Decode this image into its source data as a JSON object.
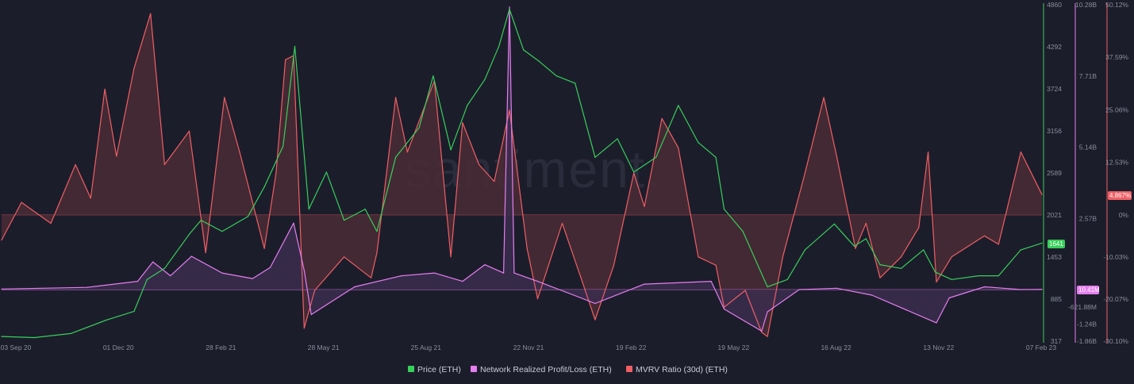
{
  "chart_data": {
    "type": "line",
    "title": "",
    "watermark": "santiment.",
    "colors": {
      "background": "#1c1d2b",
      "price": "#37d05a",
      "nrpl": "#e57ff0",
      "mvrv": "#ef5f64",
      "mvrv_fill": "#4a2b35",
      "nrpl_fill": "#3b2d4f"
    },
    "x_ticks": [
      "03 Sep 20",
      "01 Dec 20",
      "28 Feb 21",
      "28 May 21",
      "25 Aug 21",
      "22 Nov 21",
      "19 Feb 22",
      "19 May 22",
      "16 Aug 22",
      "13 Nov 22",
      "07 Feb 23"
    ],
    "axes": {
      "price": {
        "ticks": [
          "4860",
          "4292",
          "3724",
          "3156",
          "2589",
          "2021",
          "1453",
          "885",
          "317"
        ],
        "ylim": [
          317,
          4860
        ]
      },
      "nrpl": {
        "ticks": [
          "10.28B",
          "7.71B",
          "5.14B",
          "2.57B",
          "0",
          "-621.88M",
          "-1.24B",
          "-1.86B"
        ],
        "ylim": [
          -1.86,
          10.28
        ],
        "unit": "B"
      },
      "mvrv": {
        "ticks": [
          "50.12%",
          "37.59%",
          "25.06%",
          "12.53%",
          "0%",
          "-10.03%",
          "-20.07%",
          "-30.10%"
        ],
        "ylim": [
          -30.1,
          50.12
        ],
        "unit": "%"
      }
    },
    "badges": {
      "price": "1641",
      "nrpl": "10.41M",
      "mvrv": "4.867%"
    },
    "legend_placement": "bottom-center",
    "series": [
      {
        "name": "Price (ETH)",
        "axis": "price",
        "x": [
          "2020-09-03",
          "2020-10-01",
          "2020-11-01",
          "2020-12-01",
          "2020-12-25",
          "2021-01-05",
          "2021-01-20",
          "2021-02-10",
          "2021-02-20",
          "2021-03-10",
          "2021-04-01",
          "2021-04-15",
          "2021-05-01",
          "2021-05-11",
          "2021-05-23",
          "2021-06-07",
          "2021-06-22",
          "2021-07-10",
          "2021-07-20",
          "2021-08-05",
          "2021-08-25",
          "2021-09-06",
          "2021-09-21",
          "2021-10-05",
          "2021-10-20",
          "2021-11-01",
          "2021-11-10",
          "2021-11-22",
          "2021-12-05",
          "2021-12-20",
          "2022-01-05",
          "2022-01-22",
          "2022-02-10",
          "2022-02-24",
          "2022-03-15",
          "2022-04-03",
          "2022-04-20",
          "2022-05-05",
          "2022-05-12",
          "2022-05-28",
          "2022-06-18",
          "2022-07-05",
          "2022-07-20",
          "2022-08-14",
          "2022-08-31",
          "2022-09-10",
          "2022-09-22",
          "2022-10-10",
          "2022-10-29",
          "2022-11-08",
          "2022-11-22",
          "2022-12-15",
          "2023-01-01",
          "2023-01-20",
          "2023-02-07"
        ],
        "values": [
          380,
          365,
          420,
          600,
          720,
          1150,
          1300,
          1760,
          1950,
          1800,
          2000,
          2400,
          2950,
          4300,
          2100,
          2600,
          1950,
          2100,
          1800,
          2800,
          3200,
          3900,
          2900,
          3500,
          3850,
          4300,
          4800,
          4250,
          4100,
          3900,
          3800,
          2800,
          3050,
          2600,
          2800,
          3500,
          3000,
          2800,
          2100,
          1800,
          1050,
          1150,
          1550,
          1900,
          1600,
          1700,
          1350,
          1300,
          1550,
          1250,
          1150,
          1200,
          1200,
          1550,
          1641
        ]
      },
      {
        "name": "Network Realized Profit/Loss (ETH)",
        "axis": "nrpl",
        "x": [
          "2020-09-03",
          "2020-11-15",
          "2020-12-28",
          "2021-01-10",
          "2021-01-25",
          "2021-02-12",
          "2021-03-10",
          "2021-04-05",
          "2021-04-20",
          "2021-05-10",
          "2021-05-19",
          "2021-05-25",
          "2021-07-01",
          "2021-08-10",
          "2021-09-07",
          "2021-10-01",
          "2021-10-20",
          "2021-11-05",
          "2021-11-10",
          "2021-11-14",
          "2021-12-04",
          "2022-01-10",
          "2022-01-22",
          "2022-03-05",
          "2022-05-01",
          "2022-05-12",
          "2022-06-13",
          "2022-06-18",
          "2022-07-15",
          "2022-08-16",
          "2022-09-15",
          "2022-11-09",
          "2022-11-20",
          "2022-12-20",
          "2023-01-20",
          "2023-02-07"
        ],
        "values": [
          0.02,
          0.08,
          0.3,
          1.0,
          0.5,
          1.2,
          0.6,
          0.4,
          0.8,
          2.4,
          0.7,
          -0.9,
          0.1,
          0.5,
          0.6,
          0.3,
          0.9,
          0.6,
          10.2,
          0.6,
          0.3,
          -0.3,
          -0.5,
          0.2,
          0.3,
          -0.7,
          -1.5,
          -0.8,
          0.0,
          0.05,
          -0.2,
          -1.2,
          -0.3,
          0.1,
          0.0,
          0.01
        ]
      },
      {
        "name": "MVRV Ratio (30d) (ETH)",
        "axis": "mvrv",
        "x": [
          "2020-09-03",
          "2020-09-20",
          "2020-10-15",
          "2020-11-05",
          "2020-11-18",
          "2020-11-30",
          "2020-12-10",
          "2020-12-25",
          "2021-01-08",
          "2021-01-20",
          "2021-02-10",
          "2021-02-24",
          "2021-03-12",
          "2021-03-25",
          "2021-04-15",
          "2021-04-25",
          "2021-05-03",
          "2021-05-10",
          "2021-05-19",
          "2021-05-28",
          "2021-06-22",
          "2021-07-15",
          "2021-07-20",
          "2021-08-05",
          "2021-08-15",
          "2021-09-07",
          "2021-09-21",
          "2021-10-01",
          "2021-10-15",
          "2021-10-28",
          "2021-11-10",
          "2021-11-25",
          "2021-12-04",
          "2021-12-25",
          "2022-01-10",
          "2022-01-22",
          "2022-02-07",
          "2022-02-24",
          "2022-03-05",
          "2022-03-20",
          "2022-04-03",
          "2022-04-20",
          "2022-05-05",
          "2022-05-12",
          "2022-05-30",
          "2022-06-13",
          "2022-06-18",
          "2022-07-01",
          "2022-07-20",
          "2022-08-05",
          "2022-08-16",
          "2022-09-01",
          "2022-09-10",
          "2022-09-22",
          "2022-10-10",
          "2022-10-25",
          "2022-11-02",
          "2022-11-09",
          "2022-11-22",
          "2022-12-20",
          "2023-01-01",
          "2023-01-20",
          "2023-02-07"
        ],
        "values": [
          -6,
          3,
          -2,
          12,
          4,
          30,
          14,
          35,
          48,
          12,
          20,
          -9,
          28,
          15,
          -8,
          10,
          37,
          38,
          -27,
          -18,
          -10,
          -15,
          -9,
          28,
          15,
          32,
          -10,
          22,
          12,
          8,
          25,
          -8,
          -20,
          -2,
          -15,
          -25,
          -12,
          10,
          2,
          23,
          16,
          -10,
          -12,
          -22,
          -18,
          -28,
          -29,
          -10,
          10,
          28,
          14,
          -8,
          -2,
          -15,
          -10,
          -3,
          15,
          -16,
          -10,
          -5,
          -7,
          15,
          4.867
        ]
      }
    ]
  },
  "legend": [
    {
      "label": "Price (ETH)",
      "color": "#37d05a"
    },
    {
      "label": "Network Realized Profit/Loss (ETH)",
      "color": "#e57ff0"
    },
    {
      "label": "MVRV Ratio (30d) (ETH)",
      "color": "#ef5f64"
    }
  ]
}
